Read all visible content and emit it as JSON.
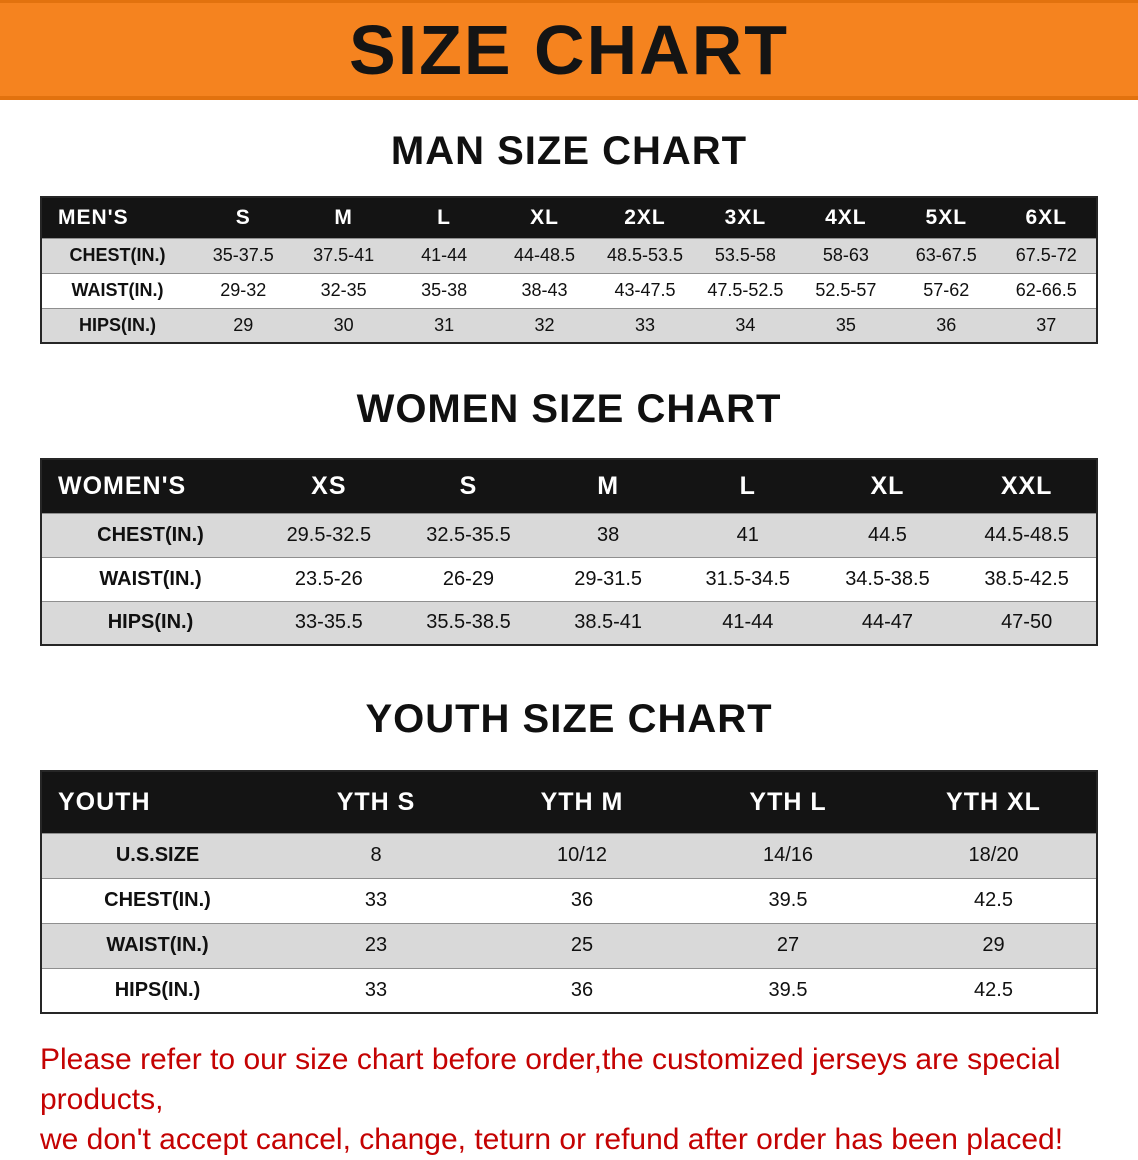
{
  "banner": {
    "title": "SIZE CHART",
    "bg_color": "#F5831F"
  },
  "sections": [
    {
      "heading": "MAN SIZE CHART",
      "table": {
        "header": [
          "MEN'S",
          "S",
          "M",
          "L",
          "XL",
          "2XL",
          "3XL",
          "4XL",
          "5XL",
          "6XL"
        ],
        "rows": [
          [
            "CHEST(IN.)",
            "35-37.5",
            "37.5-41",
            "41-44",
            "44-48.5",
            "48.5-53.5",
            "53.5-58",
            "58-63",
            "63-67.5",
            "67.5-72"
          ],
          [
            "WAIST(IN.)",
            "29-32",
            "32-35",
            "35-38",
            "38-43",
            "43-47.5",
            "47.5-52.5",
            "52.5-57",
            "57-62",
            "62-66.5"
          ],
          [
            "HIPS(IN.)",
            "29",
            "30",
            "31",
            "32",
            "33",
            "34",
            "35",
            "36",
            "37"
          ]
        ]
      }
    },
    {
      "heading": "WOMEN SIZE CHART",
      "table": {
        "header": [
          "WOMEN'S",
          "XS",
          "S",
          "M",
          "L",
          "XL",
          "XXL"
        ],
        "rows": [
          [
            "CHEST(IN.)",
            "29.5-32.5",
            "32.5-35.5",
            "38",
            "41",
            "44.5",
            "44.5-48.5"
          ],
          [
            "WAIST(IN.)",
            "23.5-26",
            "26-29",
            "29-31.5",
            "31.5-34.5",
            "34.5-38.5",
            "38.5-42.5"
          ],
          [
            "HIPS(IN.)",
            "33-35.5",
            "35.5-38.5",
            "38.5-41",
            "41-44",
            "44-47",
            "47-50"
          ]
        ]
      }
    },
    {
      "heading": "YOUTH SIZE CHART",
      "table": {
        "header": [
          "YOUTH",
          "YTH S",
          "YTH M",
          "YTH L",
          "YTH XL"
        ],
        "rows": [
          [
            "U.S.SIZE",
            "8",
            "10/12",
            "14/16",
            "18/20"
          ],
          [
            "CHEST(IN.)",
            "33",
            "36",
            "39.5",
            "42.5"
          ],
          [
            "WAIST(IN.)",
            "23",
            "25",
            "27",
            "29"
          ],
          [
            "HIPS(IN.)",
            "33",
            "36",
            "39.5",
            "42.5"
          ]
        ]
      }
    }
  ],
  "disclaimer": {
    "line1": "Please refer to our size chart before order,the customized jerseys are special products,",
    "line2": "we don't accept cancel, change, teturn or refund after order has been placed!",
    "color": "#C40202"
  },
  "colors": {
    "banner_bg": "#F5831F",
    "table_header_bg": "#141414",
    "row_alt_bg": "#D9D9D9",
    "disclaimer_red": "#C40202"
  }
}
